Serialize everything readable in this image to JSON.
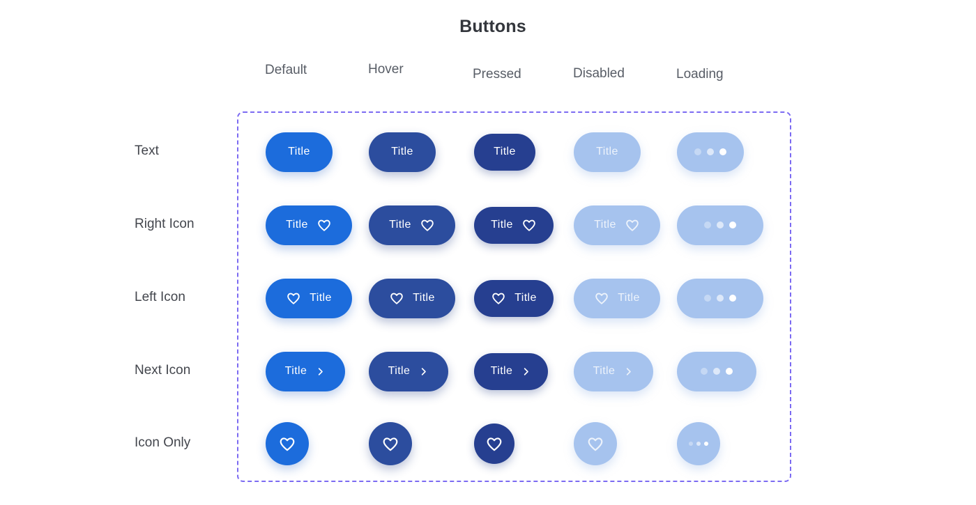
{
  "page": {
    "title": "Buttons"
  },
  "columns": [
    {
      "id": "default",
      "label": "Default"
    },
    {
      "id": "hover",
      "label": "Hover"
    },
    {
      "id": "pressed",
      "label": "Pressed"
    },
    {
      "id": "disabled",
      "label": "Disabled"
    },
    {
      "id": "loading",
      "label": "Loading"
    }
  ],
  "rows": [
    {
      "id": "text",
      "label": "Text",
      "variant": "text-only"
    },
    {
      "id": "right-icon",
      "label": "Right Icon",
      "variant": "label-then-heart"
    },
    {
      "id": "left-icon",
      "label": "Left Icon",
      "variant": "heart-then-label"
    },
    {
      "id": "next-icon",
      "label": "Next Icon",
      "variant": "label-then-chevron"
    },
    {
      "id": "icon-only",
      "label": "Icon Only",
      "variant": "heart-only"
    }
  ],
  "button_label": "Title",
  "icons": {
    "heart": "heart-icon",
    "chevron": "chevron-right-icon",
    "loading": "loading-dots-icon"
  },
  "colors": {
    "default_bg": "#1c6cdc",
    "hover_bg": "#2c4d9e",
    "pressed_bg": "#263f90",
    "disabled_bg": "#a6c3ee",
    "button_text": "#ffffff",
    "frame_border": "#7c6bf2",
    "title_text": "#33363c",
    "header_text": "#585d66",
    "row_label_text": "#43464d",
    "loading_dot_1": "rgba(255,255,255,0.35)",
    "loading_dot_2": "rgba(255,255,255,0.62)",
    "loading_dot_3": "#ffffff"
  }
}
